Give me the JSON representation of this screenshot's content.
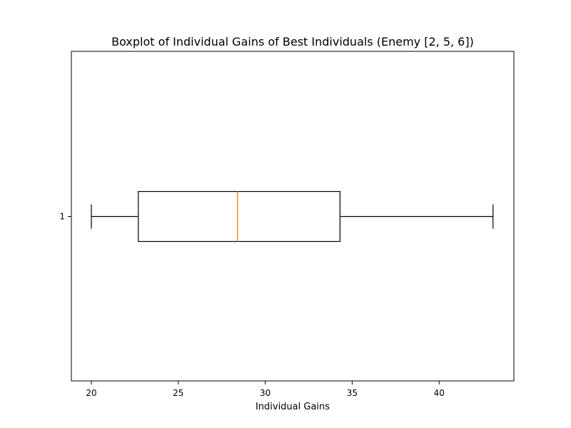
{
  "chart_data": {
    "type": "boxplot",
    "orientation": "horizontal",
    "title": "Boxplot of Individual Gains of Best Individuals (Enemy [2, 5, 6])",
    "xlabel": "Individual Gains",
    "ylabel": "",
    "xlim": [
      18.85,
      44.3
    ],
    "x_ticks": [
      20,
      25,
      30,
      35,
      40
    ],
    "categories": [
      "1"
    ],
    "series": [
      {
        "category": "1",
        "whisker_low": 20.0,
        "q1": 22.7,
        "median": 28.4,
        "q3": 34.3,
        "whisker_high": 43.1
      }
    ],
    "grid": false,
    "colors": {
      "box": "#000000",
      "median": "#ff7f0e"
    }
  }
}
